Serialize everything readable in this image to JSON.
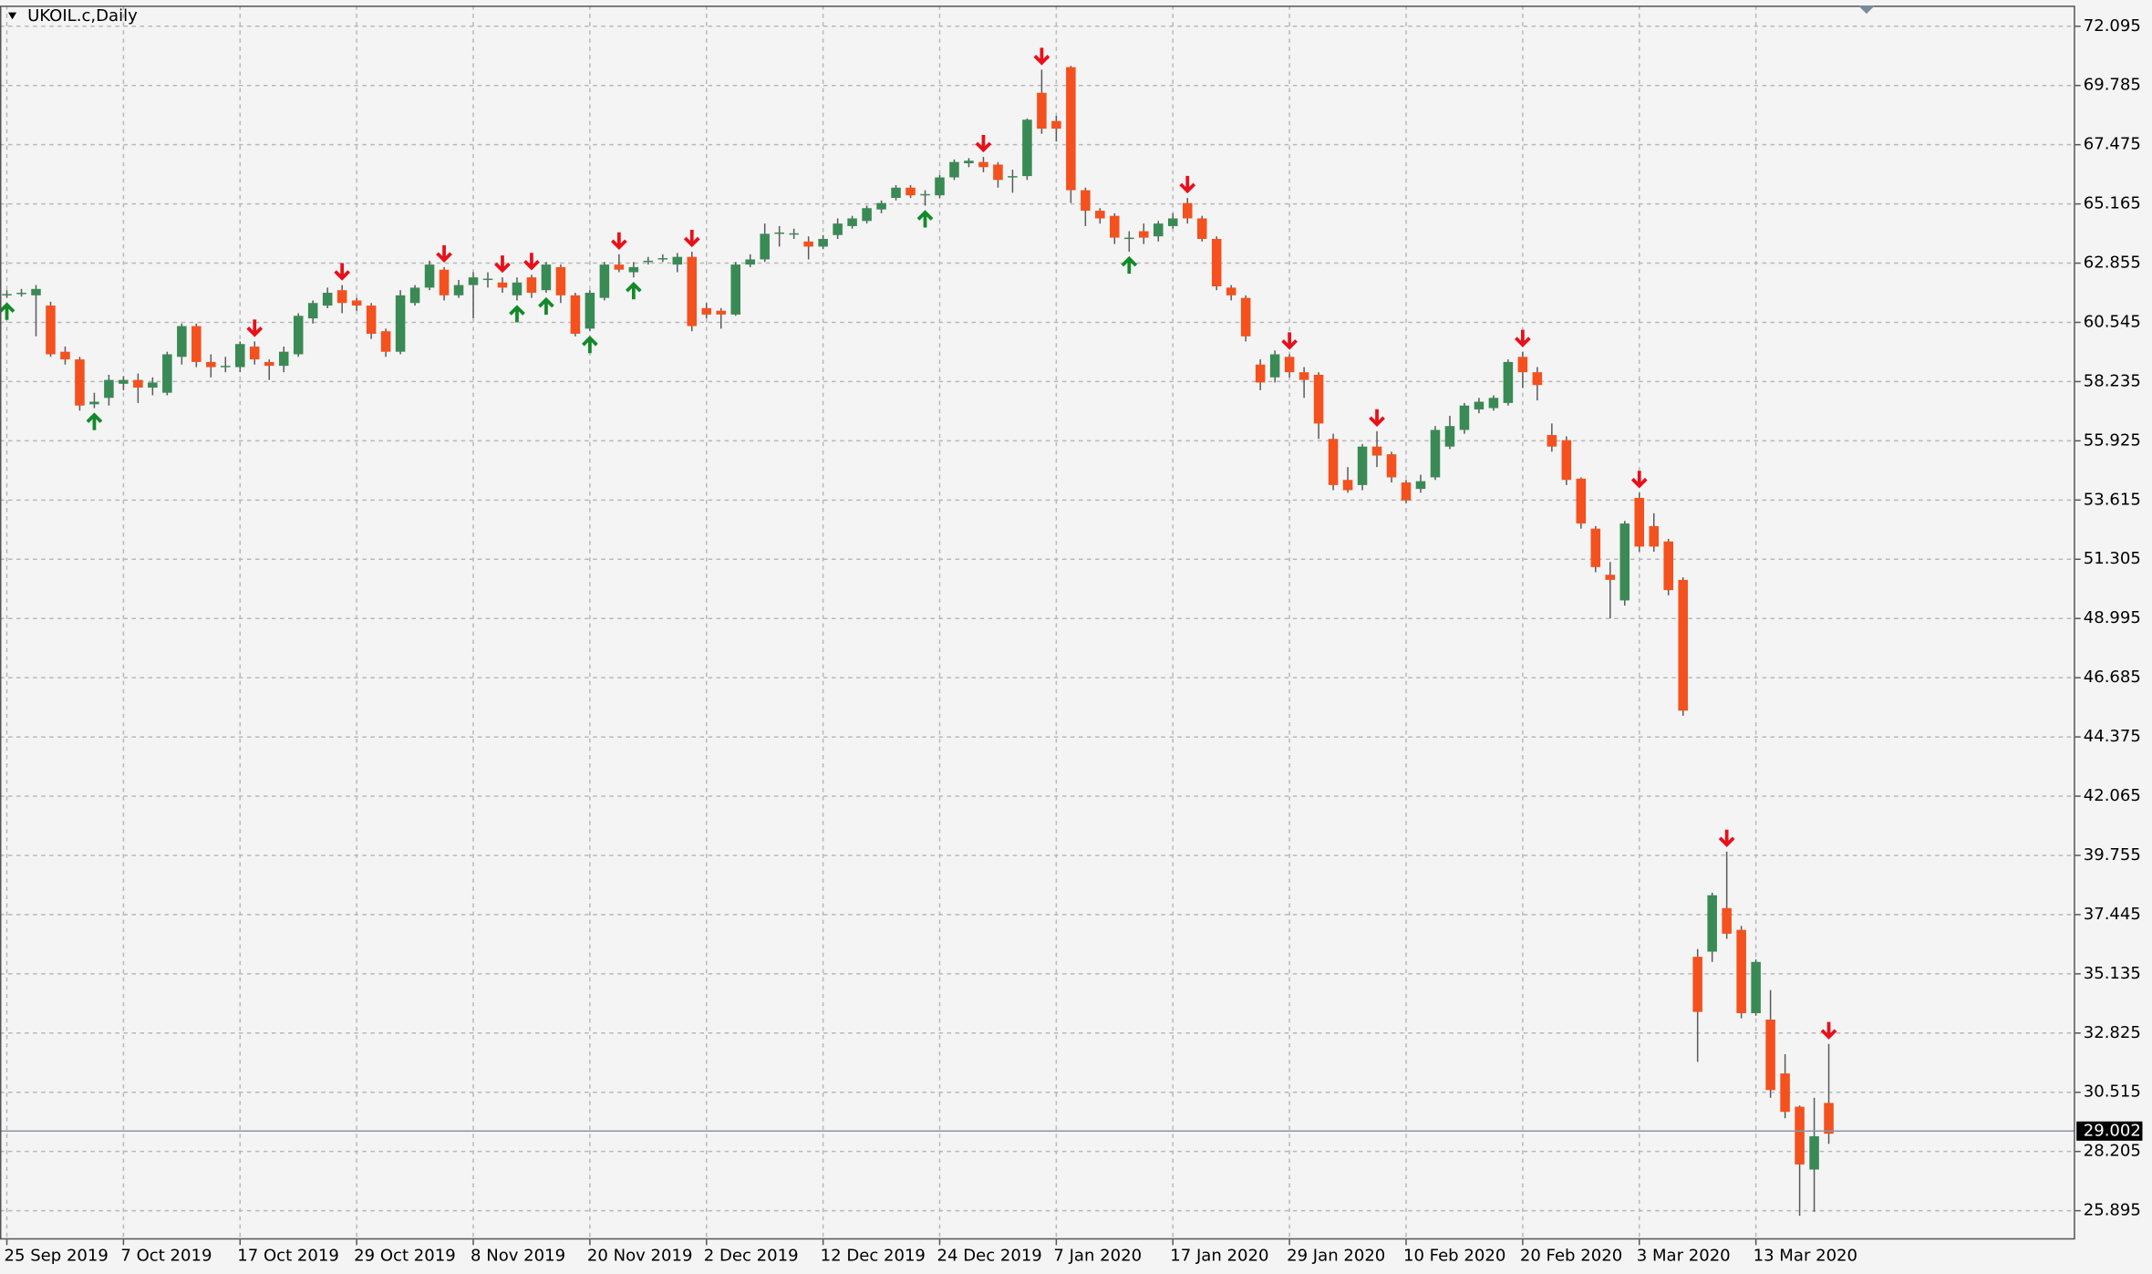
{
  "chart_data": {
    "type": "candlestick",
    "title": "UKOIL.c,Daily",
    "categories": [
      "25 Sep 2019",
      null,
      null,
      null,
      null,
      null,
      null,
      null,
      "7 Oct 2019",
      null,
      null,
      null,
      null,
      null,
      null,
      null,
      "17 Oct 2019",
      null,
      null,
      null,
      null,
      null,
      null,
      null,
      "29 Oct 2019",
      null,
      null,
      null,
      null,
      null,
      null,
      null,
      "8 Nov 2019",
      null,
      null,
      null,
      null,
      null,
      null,
      null,
      "20 Nov 2019",
      null,
      null,
      null,
      null,
      null,
      null,
      null,
      "2 Dec 2019",
      null,
      null,
      null,
      null,
      null,
      null,
      null,
      "12 Dec 2019",
      null,
      null,
      null,
      null,
      null,
      null,
      null,
      "24 Dec 2019",
      null,
      null,
      null,
      null,
      null,
      null,
      null,
      "7 Jan 2020",
      null,
      null,
      null,
      null,
      null,
      null,
      null,
      "17 Jan 2020",
      null,
      null,
      null,
      null,
      null,
      null,
      null,
      "29 Jan 2020",
      null,
      null,
      null,
      null,
      null,
      null,
      null,
      "10 Feb 2020",
      null,
      null,
      null,
      null,
      null,
      null,
      null,
      "20 Feb 2020",
      null,
      null,
      null,
      null,
      null,
      null,
      null,
      "3 Mar 2020",
      null,
      null,
      null,
      null,
      null,
      null,
      null,
      "13 Mar 2020",
      null,
      null,
      null,
      null,
      null
    ],
    "open": [
      61.6,
      61.65,
      61.6,
      61.2,
      59.4,
      59.1,
      57.35,
      57.6,
      58.15,
      58.3,
      58.0,
      57.8,
      59.2,
      60.4,
      59.0,
      58.8,
      58.8,
      59.6,
      59.0,
      58.85,
      59.3,
      60.7,
      61.2,
      61.8,
      61.4,
      61.2,
      60.2,
      59.4,
      61.3,
      61.9,
      62.6,
      61.6,
      62.0,
      62.2,
      62.1,
      61.6,
      62.3,
      61.8,
      62.7,
      61.6,
      60.3,
      61.5,
      62.8,
      62.5,
      62.9,
      63.0,
      62.8,
      63.1,
      61.1,
      61.0,
      60.85,
      62.8,
      63.0,
      64.0,
      64.0,
      63.7,
      63.5,
      63.95,
      64.3,
      64.5,
      64.95,
      65.4,
      65.8,
      65.5,
      65.5,
      66.2,
      66.75,
      66.8,
      66.7,
      66.2,
      66.25,
      69.5,
      68.4,
      70.5,
      65.7,
      64.9,
      64.7,
      63.8,
      64.1,
      63.9,
      64.3,
      65.2,
      64.6,
      63.8,
      61.9,
      61.5,
      58.9,
      58.4,
      59.2,
      58.6,
      58.5,
      56.0,
      54.4,
      54.2,
      55.7,
      55.4,
      54.3,
      54.05,
      54.5,
      55.7,
      56.35,
      57.15,
      57.2,
      57.4,
      59.2,
      58.6,
      56.15,
      55.95,
      54.45,
      52.5,
      50.7,
      49.7,
      53.7,
      52.6,
      52.0,
      50.5,
      35.8,
      36.0,
      37.7,
      36.85,
      33.6,
      33.35,
      31.25,
      29.95,
      27.5,
      30.1
    ],
    "high": [
      61.8,
      61.85,
      62.0,
      61.35,
      59.6,
      59.2,
      57.8,
      58.5,
      58.45,
      58.55,
      58.4,
      59.4,
      60.5,
      60.5,
      59.3,
      59.2,
      59.8,
      59.8,
      59.1,
      59.6,
      60.9,
      61.4,
      61.9,
      62.0,
      61.5,
      61.3,
      60.3,
      61.8,
      62.0,
      62.95,
      62.7,
      62.2,
      62.5,
      62.5,
      62.3,
      62.3,
      62.4,
      62.9,
      62.8,
      61.7,
      61.8,
      62.9,
      63.2,
      62.9,
      63.1,
      63.2,
      63.25,
      63.3,
      61.3,
      61.1,
      62.9,
      63.2,
      64.4,
      64.3,
      64.2,
      63.9,
      63.95,
      64.6,
      64.7,
      65.1,
      65.3,
      65.9,
      65.9,
      65.7,
      66.3,
      66.9,
      66.95,
      67.0,
      66.8,
      66.5,
      68.5,
      70.4,
      68.6,
      70.55,
      65.8,
      65.0,
      64.8,
      64.1,
      64.4,
      64.5,
      64.8,
      65.4,
      64.7,
      63.9,
      62.0,
      61.6,
      59.1,
      59.45,
      59.3,
      58.8,
      58.6,
      56.2,
      54.9,
      55.8,
      56.3,
      55.5,
      54.4,
      54.6,
      56.5,
      56.9,
      57.4,
      57.6,
      57.7,
      59.1,
      59.4,
      58.8,
      56.6,
      56.1,
      54.5,
      52.6,
      51.2,
      52.8,
      53.9,
      53.1,
      52.1,
      50.6,
      36.1,
      38.3,
      39.9,
      37.0,
      35.7,
      34.5,
      32.0,
      30.0,
      30.3,
      32.4
    ],
    "low": [
      61.5,
      61.55,
      60.0,
      59.2,
      58.9,
      57.1,
      57.2,
      57.3,
      57.9,
      57.4,
      57.7,
      57.7,
      58.9,
      58.8,
      58.4,
      58.6,
      58.6,
      58.9,
      58.3,
      58.6,
      59.2,
      60.5,
      61.1,
      60.9,
      61.0,
      59.9,
      59.2,
      59.3,
      61.2,
      61.8,
      61.4,
      61.5,
      60.7,
      61.9,
      61.7,
      61.4,
      61.5,
      61.7,
      61.3,
      60.0,
      60.2,
      61.4,
      62.5,
      62.3,
      62.8,
      62.9,
      62.5,
      60.2,
      60.7,
      60.3,
      60.8,
      62.7,
      62.9,
      63.5,
      63.8,
      63.0,
      63.4,
      63.8,
      64.2,
      64.4,
      64.8,
      65.3,
      65.4,
      65.1,
      65.4,
      66.1,
      66.6,
      66.4,
      65.8,
      65.6,
      66.1,
      67.9,
      67.6,
      65.2,
      64.3,
      64.4,
      63.6,
      63.3,
      63.6,
      63.7,
      64.2,
      64.4,
      63.7,
      61.8,
      61.4,
      59.8,
      57.9,
      58.2,
      58.4,
      57.6,
      56.0,
      54.0,
      53.9,
      54.0,
      54.9,
      54.3,
      53.5,
      53.9,
      54.4,
      55.6,
      56.2,
      57.0,
      57.1,
      57.3,
      58.0,
      57.5,
      55.5,
      54.2,
      52.5,
      50.8,
      49.0,
      49.5,
      51.6,
      51.6,
      49.9,
      45.2,
      31.7,
      35.6,
      36.5,
      33.4,
      33.5,
      30.3,
      29.5,
      25.7,
      25.85,
      28.5
    ],
    "close": [
      61.65,
      61.7,
      61.85,
      59.3,
      59.1,
      57.3,
      57.45,
      58.3,
      58.3,
      58.0,
      58.2,
      59.3,
      60.4,
      59.0,
      58.8,
      58.85,
      59.7,
      59.1,
      58.85,
      59.4,
      60.8,
      61.3,
      61.7,
      61.3,
      61.2,
      60.1,
      59.4,
      61.6,
      61.9,
      62.8,
      61.6,
      62.0,
      62.3,
      62.25,
      61.9,
      62.1,
      61.7,
      62.8,
      61.6,
      60.1,
      61.7,
      62.8,
      62.6,
      62.7,
      62.95,
      63.05,
      63.1,
      60.4,
      60.85,
      60.85,
      62.8,
      63.0,
      64.0,
      64.05,
      64.02,
      63.5,
      63.8,
      64.4,
      64.6,
      65.0,
      65.2,
      65.8,
      65.5,
      65.55,
      66.2,
      66.8,
      66.85,
      66.6,
      66.1,
      66.25,
      68.45,
      68.1,
      68.1,
      65.7,
      64.9,
      64.6,
      63.85,
      63.85,
      63.85,
      64.4,
      64.6,
      64.6,
      63.8,
      61.95,
      61.6,
      60.0,
      58.2,
      59.3,
      58.6,
      58.3,
      56.6,
      54.2,
      54.0,
      55.7,
      55.35,
      54.5,
      53.6,
      54.35,
      56.35,
      56.5,
      57.3,
      57.45,
      57.6,
      59.0,
      58.6,
      58.1,
      55.7,
      54.4,
      52.7,
      51.0,
      50.5,
      52.7,
      51.8,
      51.8,
      50.1,
      45.4,
      33.65,
      38.2,
      36.7,
      33.6,
      35.6,
      30.6,
      29.75,
      27.7,
      28.8,
      28.9
    ],
    "up_color": "#3a8a55",
    "down_color": "#f4511e",
    "signals_down": [
      17,
      23,
      30,
      34,
      36,
      42,
      47,
      67,
      71,
      81,
      88,
      94,
      104,
      112,
      118,
      125
    ],
    "signals_up": [
      0,
      6,
      35,
      37,
      40,
      43,
      63,
      77
    ],
    "down_signal_color": "#e8101a",
    "up_signal_color": "#138a2a",
    "last_price": 29.002,
    "ylim": [
      24.77,
      72.9
    ],
    "yticks": [
      72.095,
      69.785,
      67.475,
      65.165,
      62.855,
      60.545,
      58.235,
      55.925,
      53.615,
      51.305,
      48.995,
      46.685,
      44.375,
      42.065,
      39.755,
      37.445,
      35.135,
      32.825,
      30.515,
      28.205,
      25.895
    ],
    "grid": true
  }
}
